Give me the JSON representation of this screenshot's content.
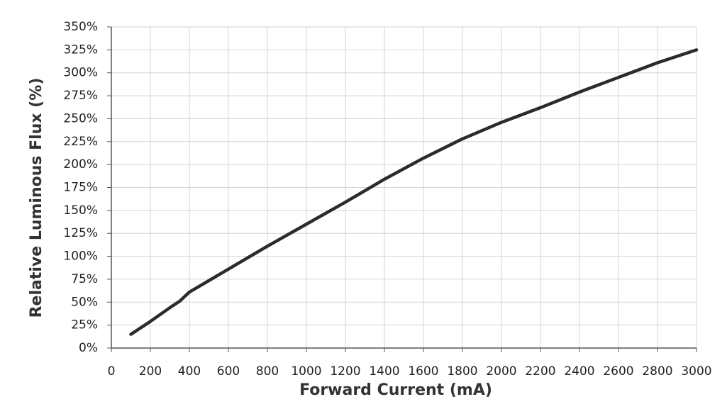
{
  "chart_data": {
    "type": "line",
    "x_label": "Forward Current (mA)",
    "y_label": "Relative Luminous Flux (%)",
    "x": [
      100,
      200,
      300,
      350,
      400,
      600,
      800,
      1000,
      1200,
      1400,
      1600,
      1800,
      2000,
      2200,
      2400,
      2600,
      2800,
      3000
    ],
    "series": [
      {
        "color": "#2b2b2b",
        "values": [
          15,
          29,
          44,
          51,
          61,
          86,
          111,
          135,
          159,
          184,
          207,
          228,
          246,
          262,
          279,
          295,
          311,
          325
        ]
      }
    ],
    "xlim": [
      0,
      3000
    ],
    "xticks": [
      0,
      200,
      400,
      600,
      800,
      1000,
      1200,
      1400,
      1600,
      1800,
      2000,
      2200,
      2400,
      2600,
      2800,
      3000
    ],
    "ylim": [
      0,
      350
    ],
    "yticks": [
      {
        "value": 0,
        "label": "0%"
      },
      {
        "value": 25,
        "label": "25%"
      },
      {
        "value": 50,
        "label": "50%"
      },
      {
        "value": 75,
        "label": "75%"
      },
      {
        "value": 100,
        "label": "100%"
      },
      {
        "value": 125,
        "label": "125%"
      },
      {
        "value": 150,
        "label": "150%"
      },
      {
        "value": 175,
        "label": "175%"
      },
      {
        "value": 200,
        "label": "200%"
      },
      {
        "value": 225,
        "label": "225%"
      },
      {
        "value": 250,
        "label": "250%"
      },
      {
        "value": 275,
        "label": "275%"
      },
      {
        "value": 300,
        "label": "300%"
      },
      {
        "value": 325,
        "label": "325%"
      },
      {
        "value": 350,
        "label": "350%"
      }
    ],
    "grid": true
  }
}
